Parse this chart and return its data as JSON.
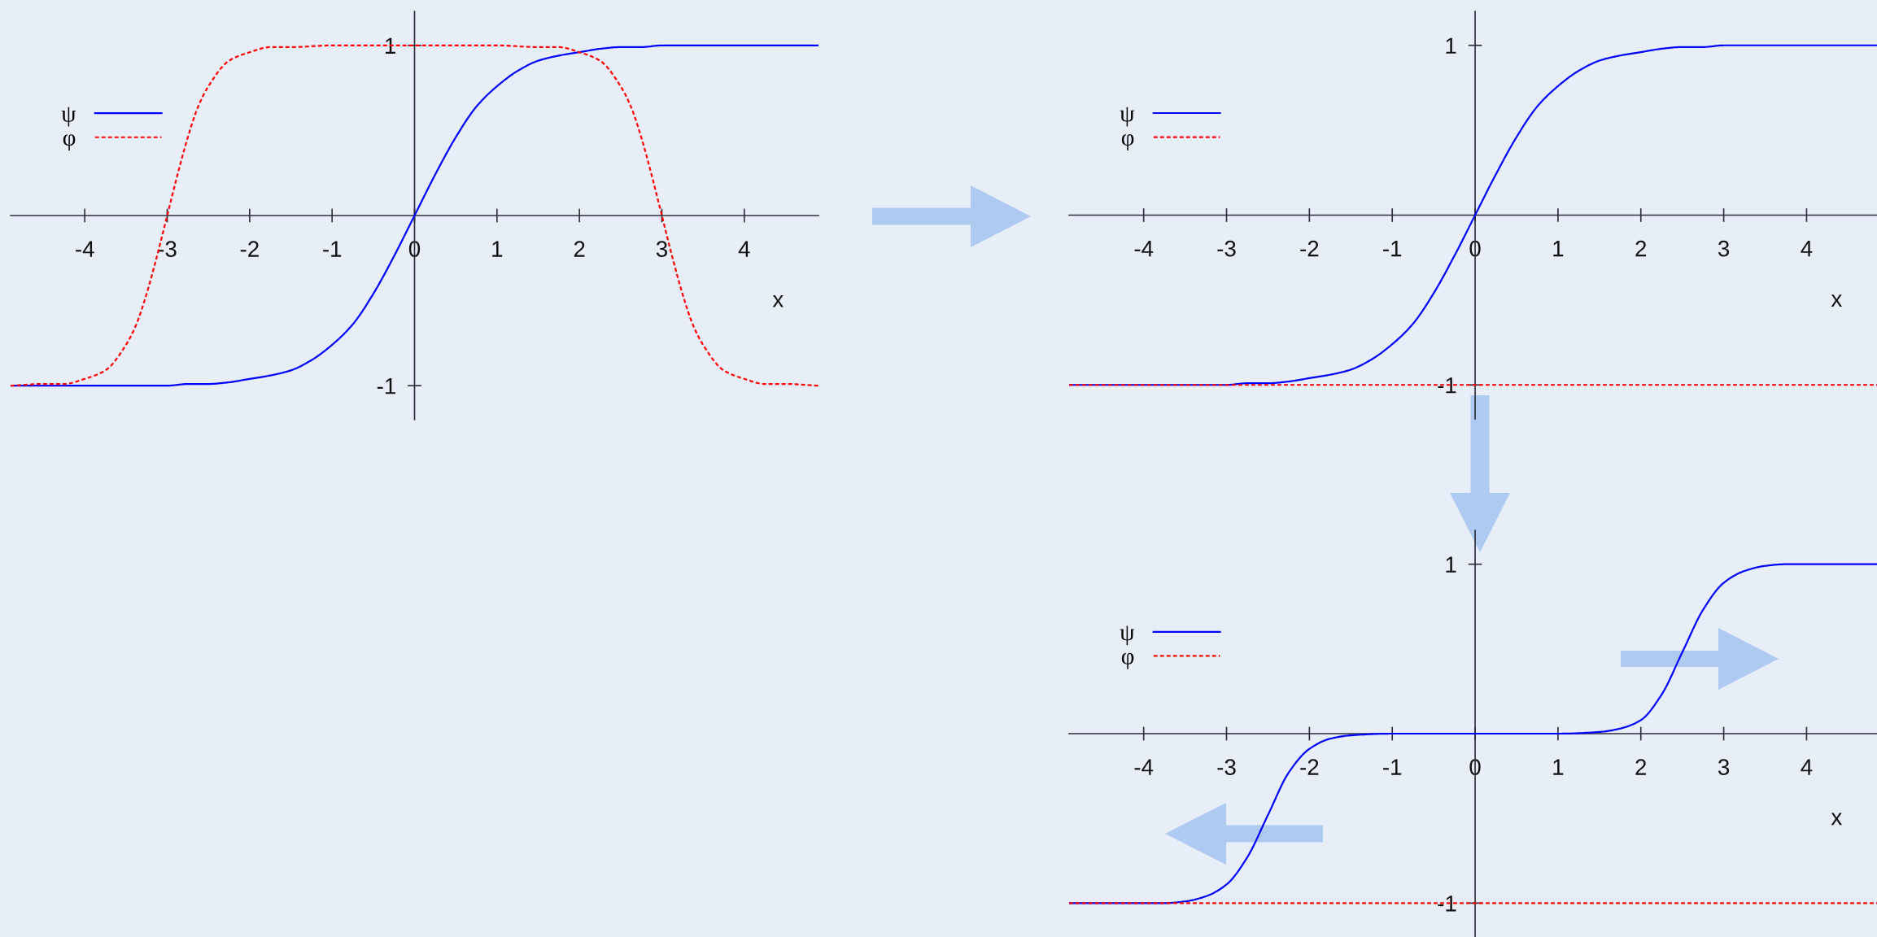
{
  "chart_data": [
    {
      "type": "line",
      "xlabel": "x",
      "xlim": [
        -4.9,
        4.9
      ],
      "ylim": [
        -1.2,
        1.2
      ],
      "xticks": [
        -4,
        -3,
        -2,
        -1,
        0,
        1,
        2,
        3,
        4
      ],
      "yticks": [
        -1,
        1
      ],
      "legend": "top left",
      "series": [
        {
          "name": "ψ",
          "color": "#0000ff",
          "line_style": "solid",
          "x": [
            -4.9,
            -4,
            -3.5,
            -3,
            -2.75,
            -2.5,
            -2.25,
            -2,
            -1.75,
            -1.5,
            -1.25,
            -1,
            -0.75,
            -0.5,
            -0.25,
            0,
            0.25,
            0.5,
            0.75,
            1,
            1.25,
            1.5,
            1.75,
            2,
            2.25,
            2.5,
            2.75,
            3,
            3.5,
            4,
            4.9
          ],
          "values": [
            -1,
            -1,
            -1,
            -1,
            -0.99,
            -0.99,
            -0.98,
            -0.96,
            -0.94,
            -0.91,
            -0.85,
            -0.76,
            -0.64,
            -0.46,
            -0.24,
            0,
            0.24,
            0.46,
            0.64,
            0.76,
            0.85,
            0.91,
            0.94,
            0.96,
            0.98,
            0.99,
            0.99,
            1,
            1,
            1,
            1
          ]
        },
        {
          "name": "φ",
          "color": "#ff0000",
          "line_style": "dotted",
          "x": [
            -4.9,
            -4.5,
            -4.25,
            -4,
            -3.75,
            -3.5,
            -3.375,
            -3.25,
            -3.125,
            -3,
            -2.875,
            -2.75,
            -2.625,
            -2.5,
            -2.25,
            -2,
            -1.75,
            -1.5,
            -1,
            0,
            1,
            1.5,
            1.75,
            2,
            2.25,
            2.5,
            2.625,
            2.75,
            2.875,
            3,
            3.125,
            3.25,
            3.375,
            3.5,
            3.75,
            4,
            4.25,
            4.5,
            4.9
          ],
          "values": [
            -1,
            -0.99,
            -0.99,
            -0.96,
            -0.91,
            -0.76,
            -0.64,
            -0.46,
            -0.24,
            0,
            0.24,
            0.46,
            0.64,
            0.76,
            0.91,
            0.96,
            0.99,
            0.99,
            1,
            1,
            1,
            0.99,
            0.99,
            0.96,
            0.91,
            0.76,
            0.64,
            0.46,
            0.24,
            0,
            -0.24,
            -0.46,
            -0.64,
            -0.76,
            -0.91,
            -0.96,
            -0.99,
            -0.99,
            -1
          ]
        }
      ]
    },
    {
      "type": "line",
      "xlabel": "x",
      "xlim": [
        -4.9,
        4.85
      ],
      "ylim": [
        -1.2,
        1.2
      ],
      "xticks": [
        -4,
        -3,
        -2,
        -1,
        0,
        1,
        2,
        3,
        4
      ],
      "yticks": [
        -1,
        1
      ],
      "legend": "top left",
      "series": [
        {
          "name": "ψ",
          "color": "#0000ff",
          "line_style": "solid",
          "x": [
            -4.9,
            -4,
            -3.5,
            -3,
            -2.75,
            -2.5,
            -2.25,
            -2,
            -1.75,
            -1.5,
            -1.25,
            -1,
            -0.75,
            -0.5,
            -0.25,
            0,
            0.25,
            0.5,
            0.75,
            1,
            1.25,
            1.5,
            1.75,
            2,
            2.25,
            2.5,
            2.75,
            3,
            3.5,
            4,
            4.85
          ],
          "values": [
            -1,
            -1,
            -1,
            -1,
            -0.99,
            -0.99,
            -0.98,
            -0.96,
            -0.94,
            -0.91,
            -0.85,
            -0.76,
            -0.64,
            -0.46,
            -0.24,
            0,
            0.24,
            0.46,
            0.64,
            0.76,
            0.85,
            0.91,
            0.94,
            0.96,
            0.98,
            0.99,
            0.99,
            1,
            1,
            1,
            1
          ]
        },
        {
          "name": "φ",
          "color": "#ff0000",
          "line_style": "dotted",
          "x": [
            -4.9,
            4.85
          ],
          "values": [
            -1,
            -1
          ]
        }
      ]
    },
    {
      "type": "line",
      "xlabel": "x",
      "xlim": [
        -4.9,
        4.85
      ],
      "ylim": [
        -1.2,
        1.2
      ],
      "xticks": [
        -4,
        -3,
        -2,
        -1,
        0,
        1,
        2,
        3,
        4
      ],
      "yticks": [
        -1,
        1
      ],
      "legend": "top left",
      "series": [
        {
          "name": "ψ",
          "color": "#0000ff",
          "line_style": "solid",
          "x": [
            -4.9,
            -4,
            -3.75,
            -3.5,
            -3.25,
            -3,
            -2.75,
            -2.5,
            -2.25,
            -2,
            -1.75,
            -1.5,
            -1,
            0,
            1,
            1.5,
            1.75,
            2,
            2.25,
            2.5,
            2.75,
            3,
            3.25,
            3.5,
            3.75,
            4,
            4.85
          ],
          "values": [
            -1,
            -1,
            -1,
            -0.99,
            -0.96,
            -0.89,
            -0.73,
            -0.48,
            -0.23,
            -0.09,
            -0.03,
            -0.01,
            0,
            0,
            0,
            0.01,
            0.03,
            0.08,
            0.23,
            0.48,
            0.73,
            0.89,
            0.96,
            0.99,
            1,
            1,
            1
          ]
        },
        {
          "name": "φ",
          "color": "#ff0000",
          "line_style": "dotted",
          "x": [
            -4.9,
            4.85
          ],
          "values": [
            -1,
            -1
          ]
        }
      ]
    }
  ]
}
